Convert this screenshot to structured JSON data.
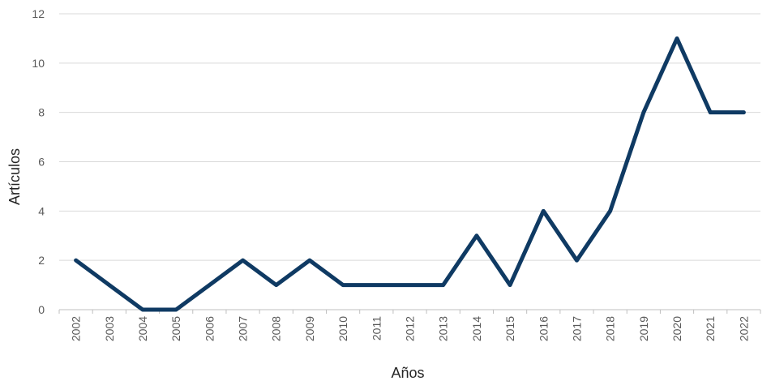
{
  "chart_data": {
    "type": "line",
    "title": "",
    "xlabel": "Años",
    "ylabel": "Artículos",
    "categories": [
      "2002",
      "2003",
      "2004",
      "2005",
      "2006",
      "2007",
      "2008",
      "2009",
      "2010",
      "2011",
      "2012",
      "2013",
      "2014",
      "2015",
      "2016",
      "2017",
      "2018",
      "2019",
      "2020",
      "2021",
      "2022"
    ],
    "series": [
      {
        "values": [
          2,
          1,
          0,
          0,
          1,
          2,
          1,
          2,
          1,
          1,
          1,
          1,
          3,
          1,
          4,
          2,
          4,
          8,
          11,
          8,
          8
        ],
        "color": "#0f3a63"
      }
    ],
    "ylim": [
      0,
      12
    ],
    "yticks": [
      0,
      2,
      4,
      6,
      8,
      10,
      12
    ],
    "grid": true,
    "legend": "none"
  }
}
